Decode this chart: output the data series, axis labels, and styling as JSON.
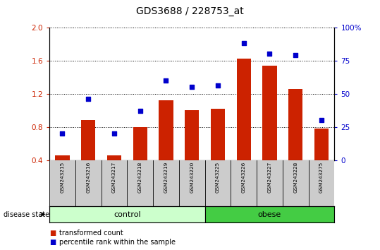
{
  "title": "GDS3688 / 228753_at",
  "samples": [
    "GSM243215",
    "GSM243216",
    "GSM243217",
    "GSM243218",
    "GSM243219",
    "GSM243220",
    "GSM243225",
    "GSM243226",
    "GSM243227",
    "GSM243228",
    "GSM243275"
  ],
  "transformed_count": [
    0.46,
    0.88,
    0.46,
    0.8,
    1.12,
    1.0,
    1.02,
    1.62,
    1.54,
    1.26,
    0.78
  ],
  "percentile_rank_pct": [
    20,
    46,
    20,
    37,
    60,
    55,
    56,
    88,
    80,
    79,
    30
  ],
  "left_ylim": [
    0.4,
    2.0
  ],
  "right_ylim": [
    0,
    100
  ],
  "left_yticks": [
    0.4,
    0.8,
    1.2,
    1.6,
    2.0
  ],
  "right_yticks": [
    0,
    25,
    50,
    75,
    100
  ],
  "bar_color": "#cc2200",
  "dot_color": "#0000cc",
  "control_indices": [
    0,
    1,
    2,
    3,
    4,
    5
  ],
  "obese_indices": [
    6,
    7,
    8,
    9,
    10
  ],
  "control_label": "control",
  "obese_label": "obese",
  "disease_state_label": "disease state",
  "legend_bar_label": "transformed count",
  "legend_dot_label": "percentile rank within the sample",
  "control_color": "#ccffcc",
  "obese_color": "#44cc44",
  "tick_label_area_color": "#cccccc",
  "grid_color": "#000000"
}
